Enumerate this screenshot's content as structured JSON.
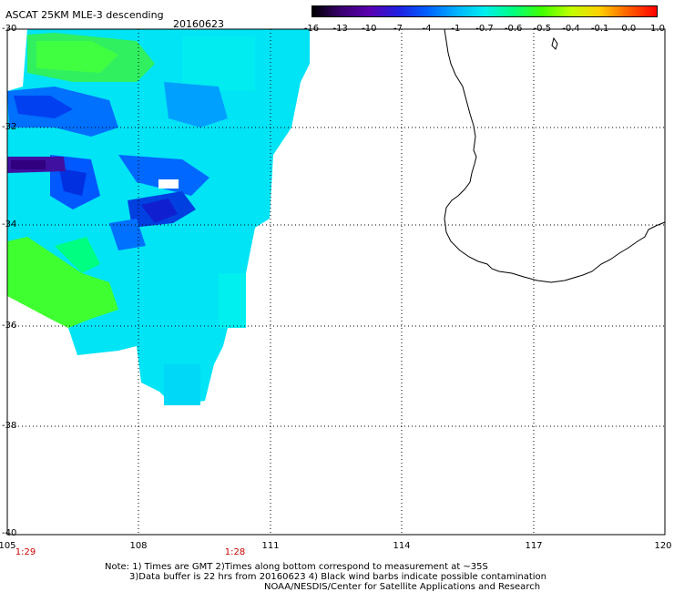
{
  "title": "ASCAT 25KM MLE-3 descending",
  "date": "20160623",
  "colorbar": {
    "labels": [
      "-16",
      "-13",
      "-10",
      "-7",
      "-4",
      "-1",
      "-0.7",
      "-0.6",
      "-0.5",
      "-0.4",
      "-0.1",
      "0.0",
      "1.0"
    ],
    "colors": [
      "#000000",
      "#3a0070",
      "#5a00b0",
      "#2020e0",
      "#0060ff",
      "#00b0ff",
      "#00eeee",
      "#00ff80",
      "#40ff00",
      "#c0ff00",
      "#ffd000",
      "#ff6000",
      "#ff0000"
    ]
  },
  "map": {
    "lat_labels": [
      "-30",
      "-32",
      "-34",
      "-36",
      "-38",
      "-40"
    ],
    "lon_labels": [
      "105",
      "108",
      "111",
      "114",
      "117",
      "120"
    ],
    "time_labels": [
      "1:29",
      "1:28"
    ],
    "land_outline": "Western Australia coastline (black)",
    "swath_colors": [
      "#00e0ff",
      "#40ff40",
      "#0050ff",
      "#3a0070"
    ]
  },
  "notes": [
    "Note: 1) Times are GMT 2)Times along bottom correspond to measurement at ~35S",
    "3)Data buffer is 22 hrs from 20160623 4) Black wind barbs indicate possible contamination",
    "NOAA/NESDIS/Center for Satellite Applications and Research"
  ]
}
